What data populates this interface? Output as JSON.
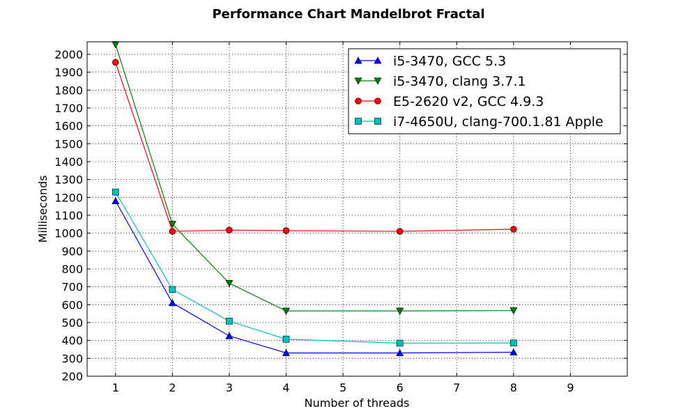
{
  "chart_data": {
    "type": "line",
    "title": "Performance Chart Mandelbrot Fractal",
    "xlabel": "Number of threads",
    "ylabel": "Milliseconds",
    "xlim": [
      0.5,
      10
    ],
    "ylim": [
      200,
      2070
    ],
    "xticks": [
      1,
      2,
      3,
      4,
      5,
      6,
      7,
      8,
      9
    ],
    "yticks": [
      200,
      300,
      400,
      500,
      600,
      700,
      800,
      900,
      1000,
      1100,
      1200,
      1300,
      1400,
      1500,
      1600,
      1700,
      1800,
      1900,
      2000
    ],
    "grid": true,
    "legend_position": "top-right",
    "x": [
      1,
      2,
      3,
      4,
      6,
      8
    ],
    "series": [
      {
        "name": "i5-3470, GCC 5.3",
        "color": "#0000ff",
        "marker": "triangle-up",
        "values": [
          1180,
          610,
          425,
          330,
          330,
          334
        ]
      },
      {
        "name": "i5-3470, clang 3.7.1",
        "color": "#008000",
        "marker": "triangle-down",
        "values": [
          2055,
          1050,
          720,
          565,
          565,
          567
        ]
      },
      {
        "name": "E5-2620 v2, GCC 4.9.3",
        "color": "#ff0000",
        "marker": "circle",
        "values": [
          1955,
          1010,
          1017,
          1014,
          1010,
          1022
        ]
      },
      {
        "name": "i7-4650U, clang-700.1.81 Apple",
        "color": "#00bfbf",
        "marker": "square",
        "values": [
          1230,
          685,
          508,
          407,
          385,
          386
        ]
      }
    ]
  }
}
